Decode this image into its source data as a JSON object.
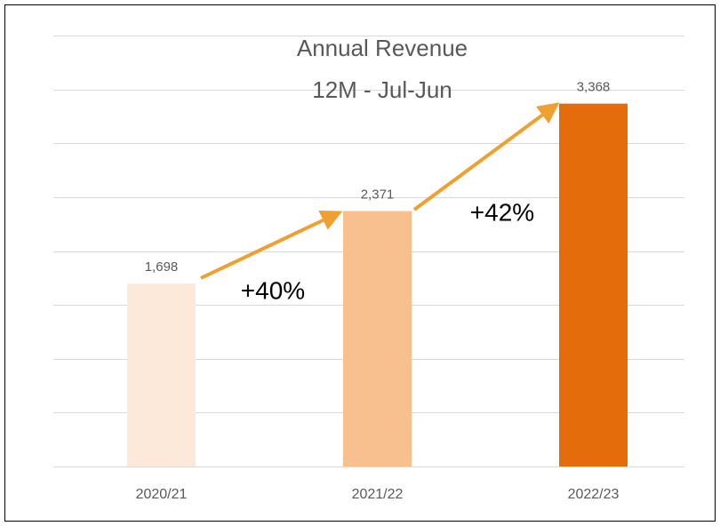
{
  "chart_data": {
    "type": "bar",
    "title": "Annual Revenue",
    "subtitle": "12M - Jul-Jun",
    "categories": [
      "2020/21",
      "2021/22",
      "2022/23"
    ],
    "values": [
      1698,
      2371,
      3368
    ],
    "value_labels": [
      "1,698",
      "2,371",
      "3,368"
    ],
    "colors": [
      "#fde9da",
      "#f9c08f",
      "#e46c0a"
    ],
    "ylim": [
      0,
      4000
    ],
    "yticks": [
      0,
      500,
      1000,
      1500,
      2000,
      2500,
      3000,
      3500,
      4000
    ],
    "grid": true,
    "annotations": [
      "+40%",
      "+42%"
    ]
  }
}
